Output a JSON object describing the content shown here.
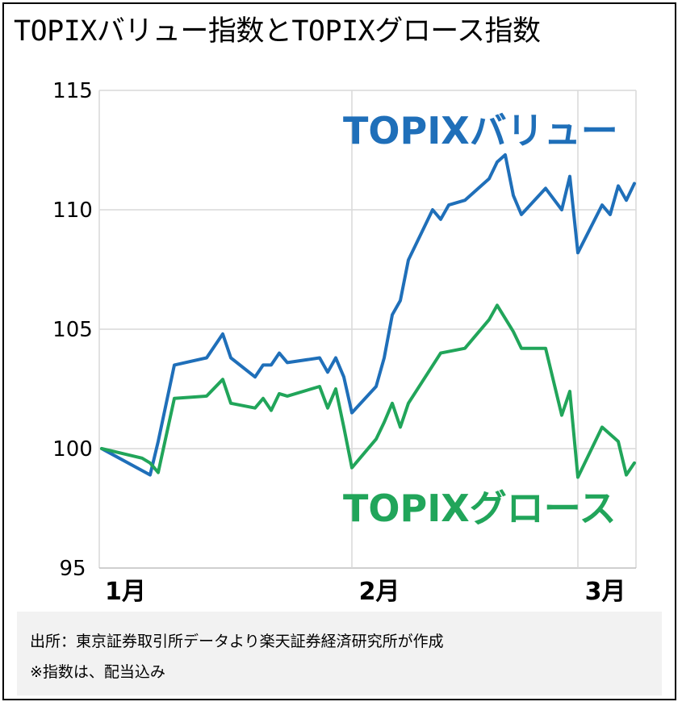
{
  "header": {
    "title": "TOPIXバリュー指数とTOPIXグロース指数"
  },
  "chart_data": {
    "type": "line",
    "title": "TOPIXバリュー指数とTOPIXグロース指数",
    "ylim": [
      95,
      115
    ],
    "yticks": [
      95,
      100,
      105,
      110,
      115
    ],
    "x_month_labels": [
      {
        "label": "1月",
        "x": 0
      },
      {
        "label": "2月",
        "x": 31
      },
      {
        "label": "3月",
        "x": 59
      }
    ],
    "grid": true,
    "series": [
      {
        "name": "TOPIXバリュー",
        "color": "#1f6fb9",
        "points": [
          [
            0,
            100
          ],
          [
            6,
            98.9
          ],
          [
            7,
            100.3
          ],
          [
            9,
            103.5
          ],
          [
            13,
            103.8
          ],
          [
            15,
            104.8
          ],
          [
            16,
            103.8
          ],
          [
            19,
            103
          ],
          [
            20,
            103.5
          ],
          [
            21,
            103.5
          ],
          [
            22,
            104
          ],
          [
            23,
            103.6
          ],
          [
            27,
            103.8
          ],
          [
            28,
            103.2
          ],
          [
            29,
            103.8
          ],
          [
            30,
            103
          ],
          [
            31,
            101.5
          ],
          [
            34,
            102.6
          ],
          [
            35,
            103.8
          ],
          [
            36,
            105.6
          ],
          [
            37,
            106.2
          ],
          [
            38,
            107.9
          ],
          [
            41,
            110
          ],
          [
            42,
            109.6
          ],
          [
            43,
            110.2
          ],
          [
            45,
            110.4
          ],
          [
            48,
            111.3
          ],
          [
            49,
            112
          ],
          [
            50,
            112.3
          ],
          [
            51,
            110.6
          ],
          [
            52,
            109.8
          ],
          [
            55,
            110.9
          ],
          [
            57,
            110
          ],
          [
            58,
            111.4
          ],
          [
            59,
            108.2
          ],
          [
            62,
            110.2
          ],
          [
            63,
            109.8
          ],
          [
            64,
            111
          ],
          [
            65,
            110.4
          ],
          [
            66,
            111.1
          ]
        ]
      },
      {
        "name": "TOPIXグロース",
        "color": "#21a55a",
        "points": [
          [
            0,
            100
          ],
          [
            5,
            99.6
          ],
          [
            6,
            99.4
          ],
          [
            7,
            99
          ],
          [
            9,
            102.1
          ],
          [
            13,
            102.2
          ],
          [
            15,
            102.9
          ],
          [
            16,
            101.9
          ],
          [
            19,
            101.7
          ],
          [
            20,
            102.1
          ],
          [
            21,
            101.6
          ],
          [
            22,
            102.3
          ],
          [
            23,
            102.2
          ],
          [
            27,
            102.6
          ],
          [
            28,
            101.7
          ],
          [
            29,
            102.5
          ],
          [
            30,
            100.9
          ],
          [
            31,
            99.2
          ],
          [
            34,
            100.4
          ],
          [
            35,
            101.1
          ],
          [
            36,
            101.9
          ],
          [
            37,
            100.9
          ],
          [
            38,
            101.9
          ],
          [
            42,
            104
          ],
          [
            45,
            104.2
          ],
          [
            48,
            105.4
          ],
          [
            49,
            106
          ],
          [
            51,
            104.9
          ],
          [
            52,
            104.2
          ],
          [
            55,
            104.2
          ],
          [
            57,
            101.4
          ],
          [
            58,
            102.4
          ],
          [
            59,
            98.8
          ],
          [
            62,
            100.9
          ],
          [
            64,
            100.3
          ],
          [
            65,
            98.9
          ],
          [
            66,
            99.4
          ]
        ]
      }
    ]
  },
  "source": {
    "line1": "出所：東京証券取引所データより楽天証券経済研究所が作成",
    "line2": "※指数は、配当込み"
  }
}
